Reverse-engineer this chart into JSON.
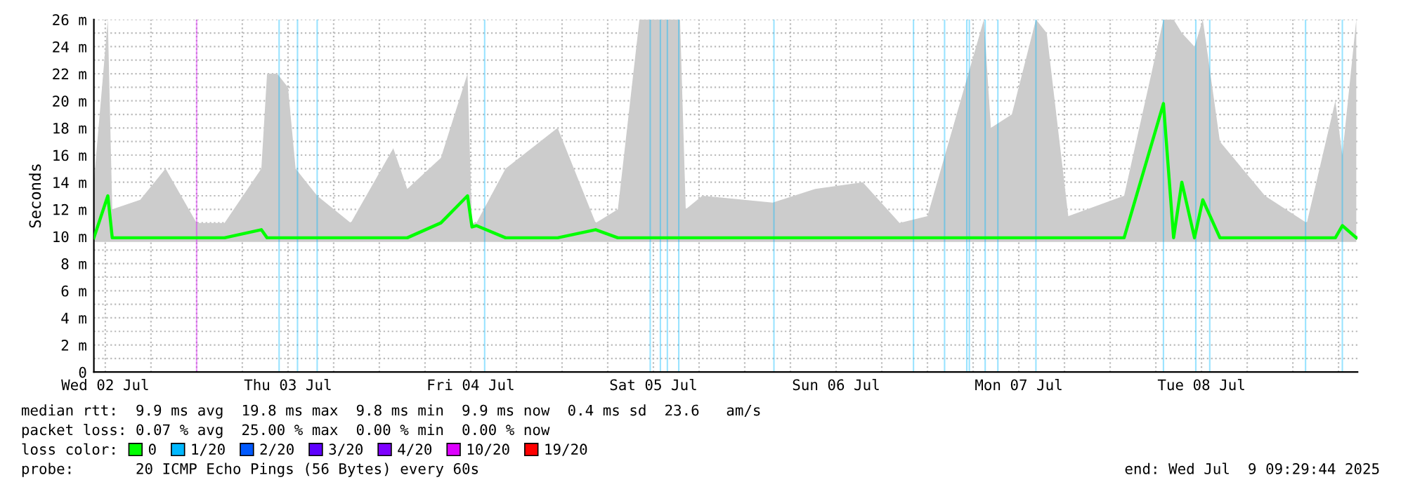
{
  "chart_data": {
    "type": "line",
    "ylabel": "Seconds",
    "legend_title": "loss color:",
    "legend": "bottom",
    "grid": true,
    "xlim": [
      "2025-07-02T10:30",
      "2025-07-09T08:30"
    ],
    "ylim": [
      0,
      26
    ],
    "yticks": [
      0,
      {
        "value": 1,
        "label": null
      },
      {
        "value": 2,
        "label": "2 m"
      },
      {
        "value": 3,
        "label": null
      },
      {
        "value": 4,
        "label": "4 m"
      },
      {
        "value": 5,
        "label": null
      },
      {
        "value": 6,
        "label": "6 m"
      },
      {
        "value": 7,
        "label": null
      },
      {
        "value": 8,
        "label": "8 m"
      },
      {
        "value": 9,
        "label": null
      },
      {
        "value": 10,
        "label": "10 m"
      },
      {
        "value": 11,
        "label": null
      },
      {
        "value": 12,
        "label": "12 m"
      },
      {
        "value": 13,
        "label": null
      },
      {
        "value": 14,
        "label": "14 m"
      },
      {
        "value": 15,
        "label": null
      },
      {
        "value": 16,
        "label": "16 m"
      },
      {
        "value": 17,
        "label": null
      },
      {
        "value": 18,
        "label": "18 m"
      },
      {
        "value": 19,
        "label": null
      },
      {
        "value": 20,
        "label": "20 m"
      },
      {
        "value": 21,
        "label": null
      },
      {
        "value": 22,
        "label": "22 m"
      },
      {
        "value": 23,
        "label": null
      },
      {
        "value": 24,
        "label": "24 m"
      },
      {
        "value": 25,
        "label": null
      },
      {
        "value": 26,
        "label": "26 m"
      }
    ],
    "xticks": [
      {
        "value": "2025-07-02T12:00",
        "label": "Wed 02 Jul"
      },
      {
        "value": "2025-07-02T18:00",
        "label": null
      },
      {
        "value": "2025-07-03T00:00",
        "label": null
      },
      {
        "value": "2025-07-03T06:00",
        "label": null
      },
      {
        "value": "2025-07-03T12:00",
        "label": "Thu 03 Jul"
      },
      {
        "value": "2025-07-03T18:00",
        "label": null
      },
      {
        "value": "2025-07-04T00:00",
        "label": null
      },
      {
        "value": "2025-07-04T06:00",
        "label": null
      },
      {
        "value": "2025-07-04T12:00",
        "label": "Fri 04 Jul"
      },
      {
        "value": "2025-07-04T18:00",
        "label": null
      },
      {
        "value": "2025-07-05T00:00",
        "label": null
      },
      {
        "value": "2025-07-05T06:00",
        "label": null
      },
      {
        "value": "2025-07-05T12:00",
        "label": "Sat 05 Jul"
      },
      {
        "value": "2025-07-05T18:00",
        "label": null
      },
      {
        "value": "2025-07-06T00:00",
        "label": null
      },
      {
        "value": "2025-07-06T06:00",
        "label": null
      },
      {
        "value": "2025-07-06T12:00",
        "label": "Sun 06 Jul"
      },
      {
        "value": "2025-07-06T18:00",
        "label": null
      },
      {
        "value": "2025-07-07T00:00",
        "label": null
      },
      {
        "value": "2025-07-07T06:00",
        "label": null
      },
      {
        "value": "2025-07-07T12:00",
        "label": "Mon 07 Jul"
      },
      {
        "value": "2025-07-07T18:00",
        "label": null
      },
      {
        "value": "2025-07-08T00:00",
        "label": null
      },
      {
        "value": "2025-07-08T06:00",
        "label": null
      },
      {
        "value": "2025-07-08T12:00",
        "label": "Tue 08 Jul"
      },
      {
        "value": "2025-07-08T18:00",
        "label": null
      },
      {
        "value": "2025-07-09T00:00",
        "label": null
      },
      {
        "value": "2025-07-09T06:00",
        "label": null
      }
    ],
    "series": [
      {
        "name": "0",
        "color": "#00ff00",
        "x": [
          "2025-07-02T10:30",
          "2025-07-02T12:20",
          "2025-07-02T12:55",
          "2025-07-02T16:35",
          "2025-07-02T19:55",
          "2025-07-03T00:00",
          "2025-07-03T03:40",
          "2025-07-03T08:30",
          "2025-07-03T09:15",
          "2025-07-03T10:35",
          "2025-07-03T12:00",
          "2025-07-03T13:00",
          "2025-07-03T15:50",
          "2025-07-03T20:15",
          "2025-07-04T01:50",
          "2025-07-04T03:40",
          "2025-07-04T08:05",
          "2025-07-04T11:35",
          "2025-07-04T12:10",
          "2025-07-04T12:45",
          "2025-07-04T16:35",
          "2025-07-04T23:25",
          "2025-07-05T04:25",
          "2025-07-05T07:20",
          "2025-07-05T10:10",
          "2025-07-05T11:25",
          "2025-07-05T12:30",
          "2025-07-05T15:30",
          "2025-07-05T16:15",
          "2025-07-05T18:25",
          "2025-07-06T03:40",
          "2025-07-06T09:15",
          "2025-07-06T15:30",
          "2025-07-06T20:20",
          "2025-07-07T00:00",
          "2025-07-07T07:25",
          "2025-07-07T08:20",
          "2025-07-07T11:05",
          "2025-07-07T14:15",
          "2025-07-07T15:40",
          "2025-07-07T18:30",
          "2025-07-08T01:50",
          "2025-07-08T07:00",
          "2025-07-08T08:20",
          "2025-07-08T09:25",
          "2025-07-08T11:05",
          "2025-07-08T12:10",
          "2025-07-08T14:25",
          "2025-07-08T20:20",
          "2025-07-09T01:50",
          "2025-07-09T05:35",
          "2025-07-09T06:30",
          "2025-07-09T08:20"
        ],
        "values": [
          9.9,
          13,
          9.9,
          9.9,
          9.9,
          9.9,
          9.9,
          10.5,
          9.9,
          9.9,
          9.9,
          9.9,
          9.9,
          9.9,
          9.9,
          9.9,
          11,
          13,
          10.7,
          10.8,
          9.9,
          9.9,
          10.5,
          9.9,
          9.9,
          9.9,
          9.9,
          9.9,
          9.9,
          9.9,
          9.9,
          9.9,
          9.9,
          9.9,
          9.9,
          9.9,
          9.9,
          9.9,
          9.9,
          9.9,
          9.9,
          9.9,
          19.8,
          9.9,
          14,
          9.9,
          12.7,
          9.9,
          9.9,
          9.9,
          9.9,
          10.8,
          9.9
        ],
        "lower": [
          9.6,
          9.6,
          9.6,
          9.6,
          9.6,
          9.6,
          9.6,
          9.6,
          9.6,
          9.6,
          9.6,
          9.6,
          9.6,
          9.6,
          9.6,
          9.6,
          9.6,
          9.6,
          9.6,
          9.6,
          9.6,
          9.6,
          9.6,
          9.6,
          9.6,
          9.6,
          9.6,
          9.6,
          9.6,
          9.6,
          9.6,
          9.6,
          9.6,
          9.6,
          9.6,
          9.6,
          9.6,
          9.6,
          9.6,
          9.6,
          9.6,
          9.6,
          9.6,
          9.6,
          9.6,
          9.6,
          9.6,
          9.6,
          9.6,
          9.6,
          9.6,
          9.6,
          9.6
        ],
        "upper": [
          14,
          26,
          12,
          12.7,
          15,
          11,
          11,
          15,
          22,
          22,
          21,
          15,
          13,
          11,
          16.5,
          13.5,
          15.8,
          22,
          11,
          11,
          15,
          18,
          11,
          12,
          26,
          26,
          26,
          26,
          12,
          13,
          12.5,
          13.5,
          14,
          11,
          11.5,
          26,
          18,
          19,
          26,
          25,
          11.5,
          13,
          26,
          26,
          25,
          24,
          26,
          17,
          13,
          11,
          20,
          16,
          26
        ]
      },
      {
        "name": "1/20",
        "type": "bar",
        "color": "#00b8ff",
        "x": [
          "2025-07-03T10:50",
          "2025-07-03T13:15",
          "2025-07-03T15:50",
          "2025-07-04T13:50",
          "2025-07-05T11:35",
          "2025-07-05T12:55",
          "2025-07-05T13:50",
          "2025-07-05T15:20",
          "2025-07-06T03:50",
          "2025-07-06T22:10",
          "2025-07-07T02:15",
          "2025-07-07T05:10",
          "2025-07-07T05:30",
          "2025-07-07T07:35",
          "2025-07-07T09:15",
          "2025-07-07T14:15",
          "2025-07-08T07:00",
          "2025-07-08T11:15",
          "2025-07-08T13:05",
          "2025-07-09T01:40",
          "2025-07-09T06:30"
        ],
        "values": [
          26,
          26,
          26,
          26,
          26,
          26,
          26,
          26,
          26,
          26,
          26,
          26,
          26,
          26,
          26,
          26,
          26,
          26,
          26,
          26,
          26
        ]
      },
      {
        "name": "2/20",
        "type": "bar",
        "color": "#0059ff"
      },
      {
        "name": "3/20",
        "type": "bar",
        "color": "#5e00ff"
      },
      {
        "name": "4/20",
        "type": "bar",
        "color": "#7e00ff"
      },
      {
        "name": "10/20",
        "type": "bar",
        "color": "#dd00ff",
        "x": [
          "2025-07-03T00:00"
        ],
        "values": [
          26
        ]
      },
      {
        "name": "19/20",
        "type": "bar",
        "color": "#ff0000"
      }
    ],
    "annotations": [
      "median rtt:  9.9 ms avg  19.8 ms max  9.8 ms min  9.9 ms now  0.4 ms sd  23.6   am/s",
      "packet loss: 0.07 % avg  25.00 % max  0.00 % min  0.00 % now",
      "probe:       20 ICMP Echo Pings (56 Bytes) every 60s",
      "end: Wed Jul  9 09:29:44 2025"
    ]
  }
}
